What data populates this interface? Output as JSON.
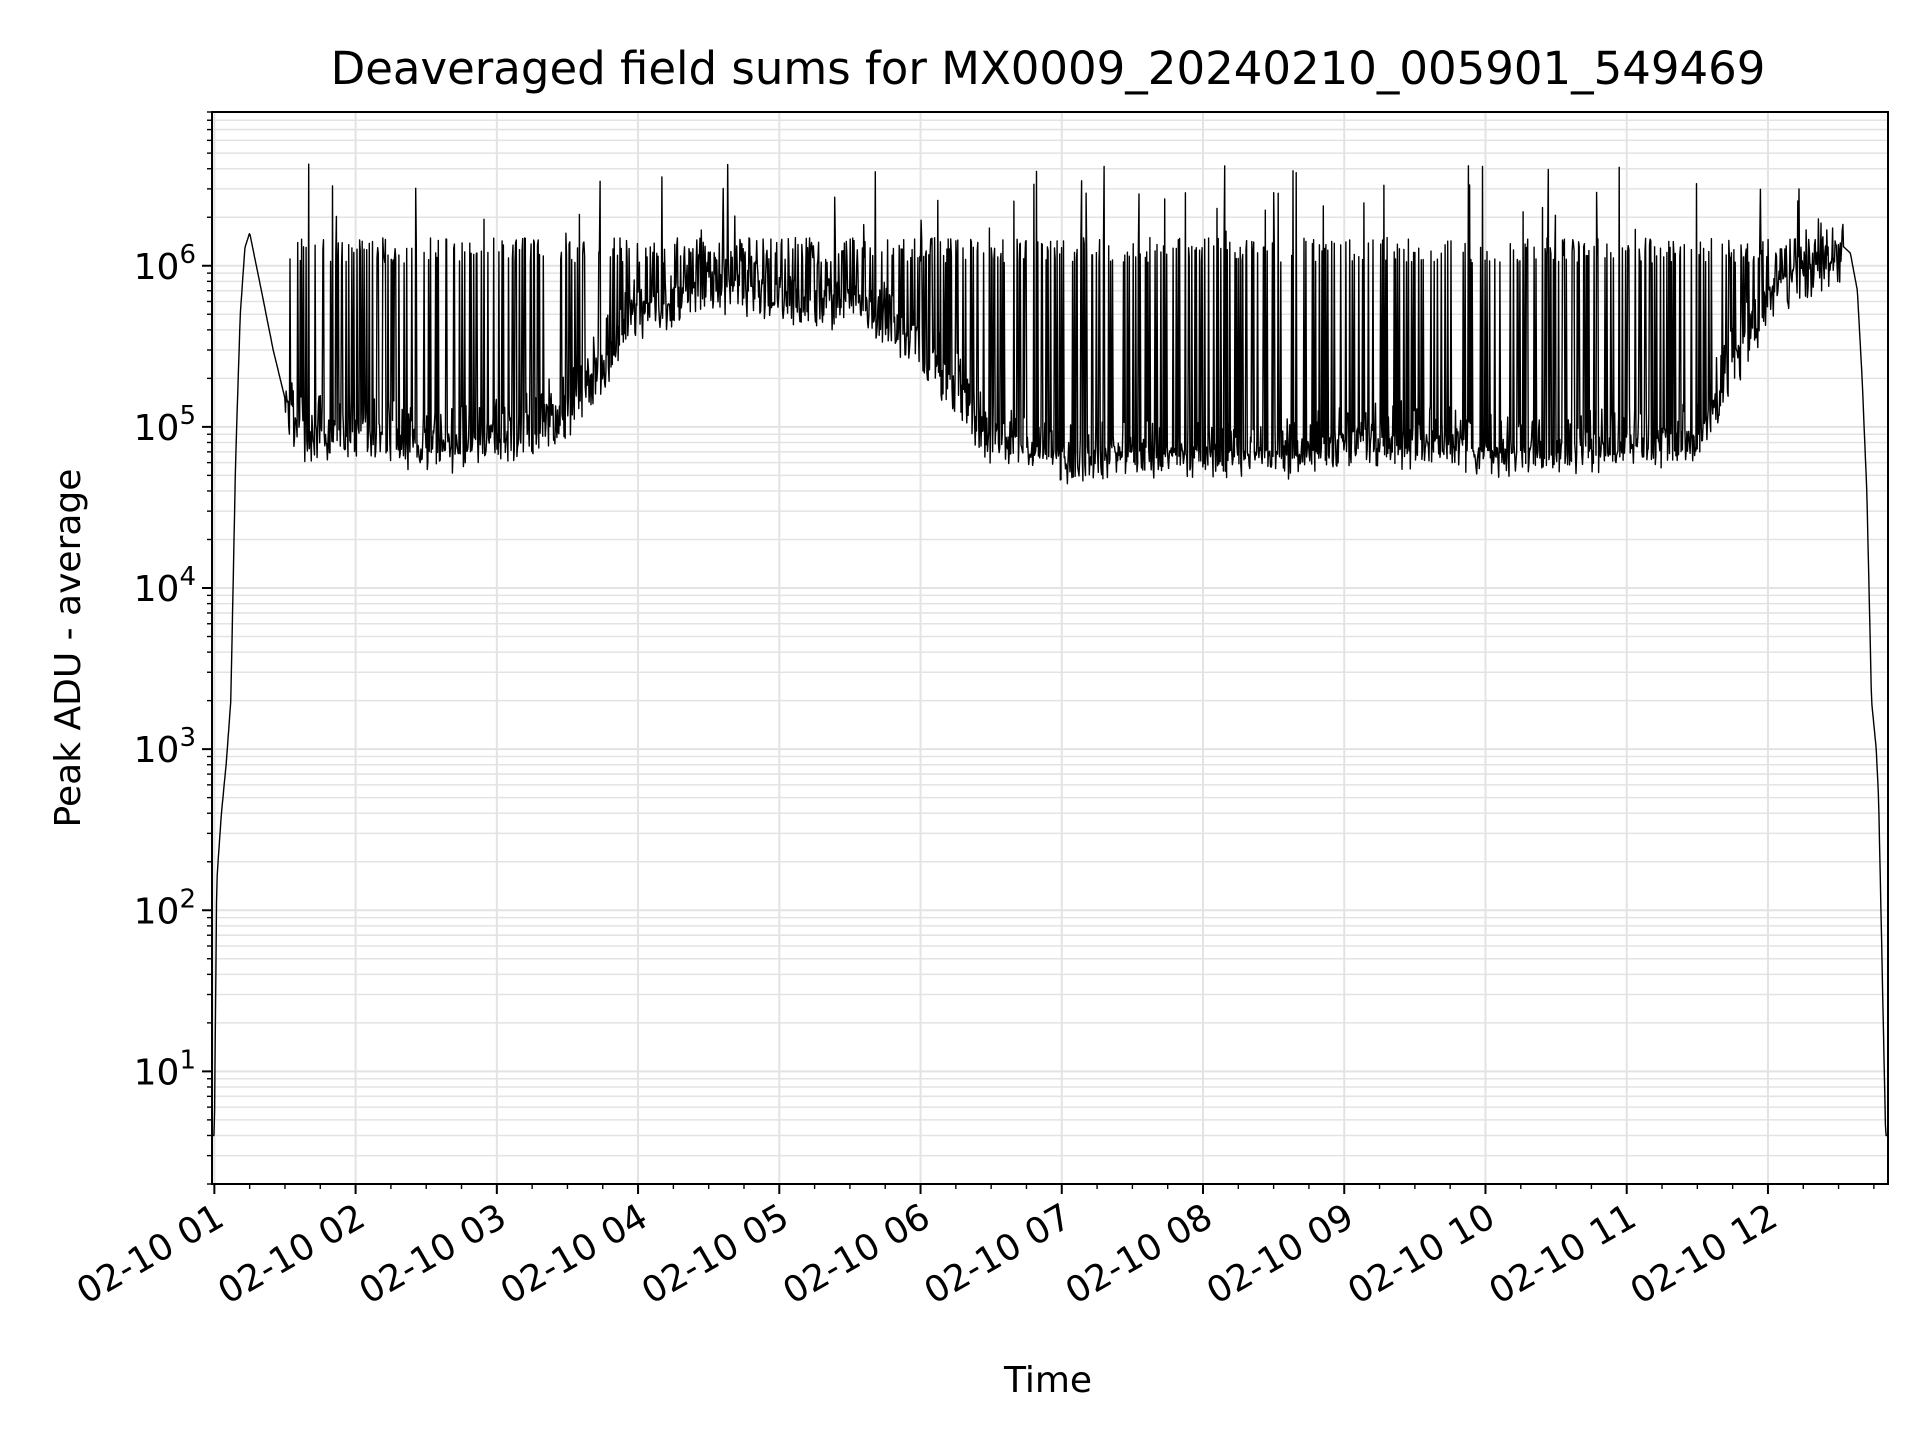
{
  "chart_data": {
    "type": "line",
    "title": "Deaveraged field sums for MX0009_20240210_005901_549469",
    "xlabel": "Time",
    "ylabel": "Peak ADU - average",
    "yscale": "log",
    "ylim": [
      2,
      9000000
    ],
    "xlim": [
      "2024-02-10 00:59",
      "2024-02-10 12:51"
    ],
    "grid": true,
    "line_color": "#000000",
    "grid_color": "#e3e3e3",
    "x_ticks": [
      {
        "value": "2024-02-10 01:00",
        "label": "02-10 01"
      },
      {
        "value": "2024-02-10 02:00",
        "label": "02-10 02"
      },
      {
        "value": "2024-02-10 03:00",
        "label": "02-10 03"
      },
      {
        "value": "2024-02-10 04:00",
        "label": "02-10 04"
      },
      {
        "value": "2024-02-10 05:00",
        "label": "02-10 05"
      },
      {
        "value": "2024-02-10 06:00",
        "label": "02-10 06"
      },
      {
        "value": "2024-02-10 07:00",
        "label": "02-10 07"
      },
      {
        "value": "2024-02-10 08:00",
        "label": "02-10 08"
      },
      {
        "value": "2024-02-10 09:00",
        "label": "02-10 09"
      },
      {
        "value": "2024-02-10 10:00",
        "label": "02-10 10"
      },
      {
        "value": "2024-02-10 11:00",
        "label": "02-10 11"
      },
      {
        "value": "2024-02-10 12:00",
        "label": "02-10 12"
      }
    ],
    "y_ticks": [
      {
        "value": 10,
        "base": "10",
        "exp": "1"
      },
      {
        "value": 100,
        "base": "10",
        "exp": "2"
      },
      {
        "value": 1000,
        "base": "10",
        "exp": "3"
      },
      {
        "value": 10000,
        "base": "10",
        "exp": "4"
      },
      {
        "value": 100000,
        "base": "10",
        "exp": "5"
      },
      {
        "value": 1000000,
        "base": "10",
        "exp": "6"
      }
    ],
    "series": [
      {
        "x": [
          "2024-02-10 00:59",
          "2024-02-10 01:00",
          "2024-02-10 01:01",
          "2024-02-10 01:03",
          "2024-02-10 01:05",
          "2024-02-10 01:07",
          "2024-02-10 01:09",
          "2024-02-10 01:11",
          "2024-02-10 01:13",
          "2024-02-10 01:15",
          "2024-02-10 01:20",
          "2024-02-10 01:25",
          "2024-02-10 01:30",
          "2024-02-10 01:35",
          "2024-02-10 01:40",
          "2024-02-10 01:50",
          "2024-02-10 02:00",
          "2024-02-10 02:15",
          "2024-02-10 02:30",
          "2024-02-10 02:45",
          "2024-02-10 03:00",
          "2024-02-10 03:30",
          "2024-02-10 04:00",
          "2024-02-10 04:30",
          "2024-02-10 05:00",
          "2024-02-10 05:30",
          "2024-02-10 06:00",
          "2024-02-10 06:30",
          "2024-02-10 07:00",
          "2024-02-10 07:30",
          "2024-02-10 08:00",
          "2024-02-10 08:30",
          "2024-02-10 09:00",
          "2024-02-10 09:30",
          "2024-02-10 10:00",
          "2024-02-10 10:30",
          "2024-02-10 11:00",
          "2024-02-10 11:30",
          "2024-02-10 11:45",
          "2024-02-10 11:55",
          "2024-02-10 12:00",
          "2024-02-10 12:05",
          "2024-02-10 12:10",
          "2024-02-10 12:15",
          "2024-02-10 12:20",
          "2024-02-10 12:25",
          "2024-02-10 12:30",
          "2024-02-10 12:35",
          "2024-02-10 12:38",
          "2024-02-10 12:40",
          "2024-02-10 12:42",
          "2024-02-10 12:44",
          "2024-02-10 12:46",
          "2024-02-10 12:47",
          "2024-02-10 12:48",
          "2024-02-10 12:50",
          "2024-02-10 12:51"
        ],
        "y": [
          4,
          4,
          150,
          400,
          800,
          2000,
          60000,
          500000,
          1300000,
          1600000,
          700000,
          300000,
          150000,
          120000,
          100000,
          110000,
          120000,
          100000,
          90000,
          90000,
          100000,
          150000,
          600000,
          900000,
          800000,
          700000,
          400000,
          100000,
          70000,
          80000,
          75000,
          75000,
          90000,
          100000,
          80000,
          80000,
          90000,
          100000,
          300000,
          500000,
          700000,
          900000,
          1000000,
          1100000,
          1200000,
          1300000,
          1400000,
          1200000,
          700000,
          200000,
          40000,
          2000,
          1000,
          500,
          100,
          4,
          4
        ],
        "spike_band": {
          "x_range": [
            "2024-02-10 01:30",
            "2024-02-10 12:32"
          ],
          "low_envelope": 60000,
          "high_envelope": 1300000,
          "max": 4500000
        }
      }
    ]
  }
}
